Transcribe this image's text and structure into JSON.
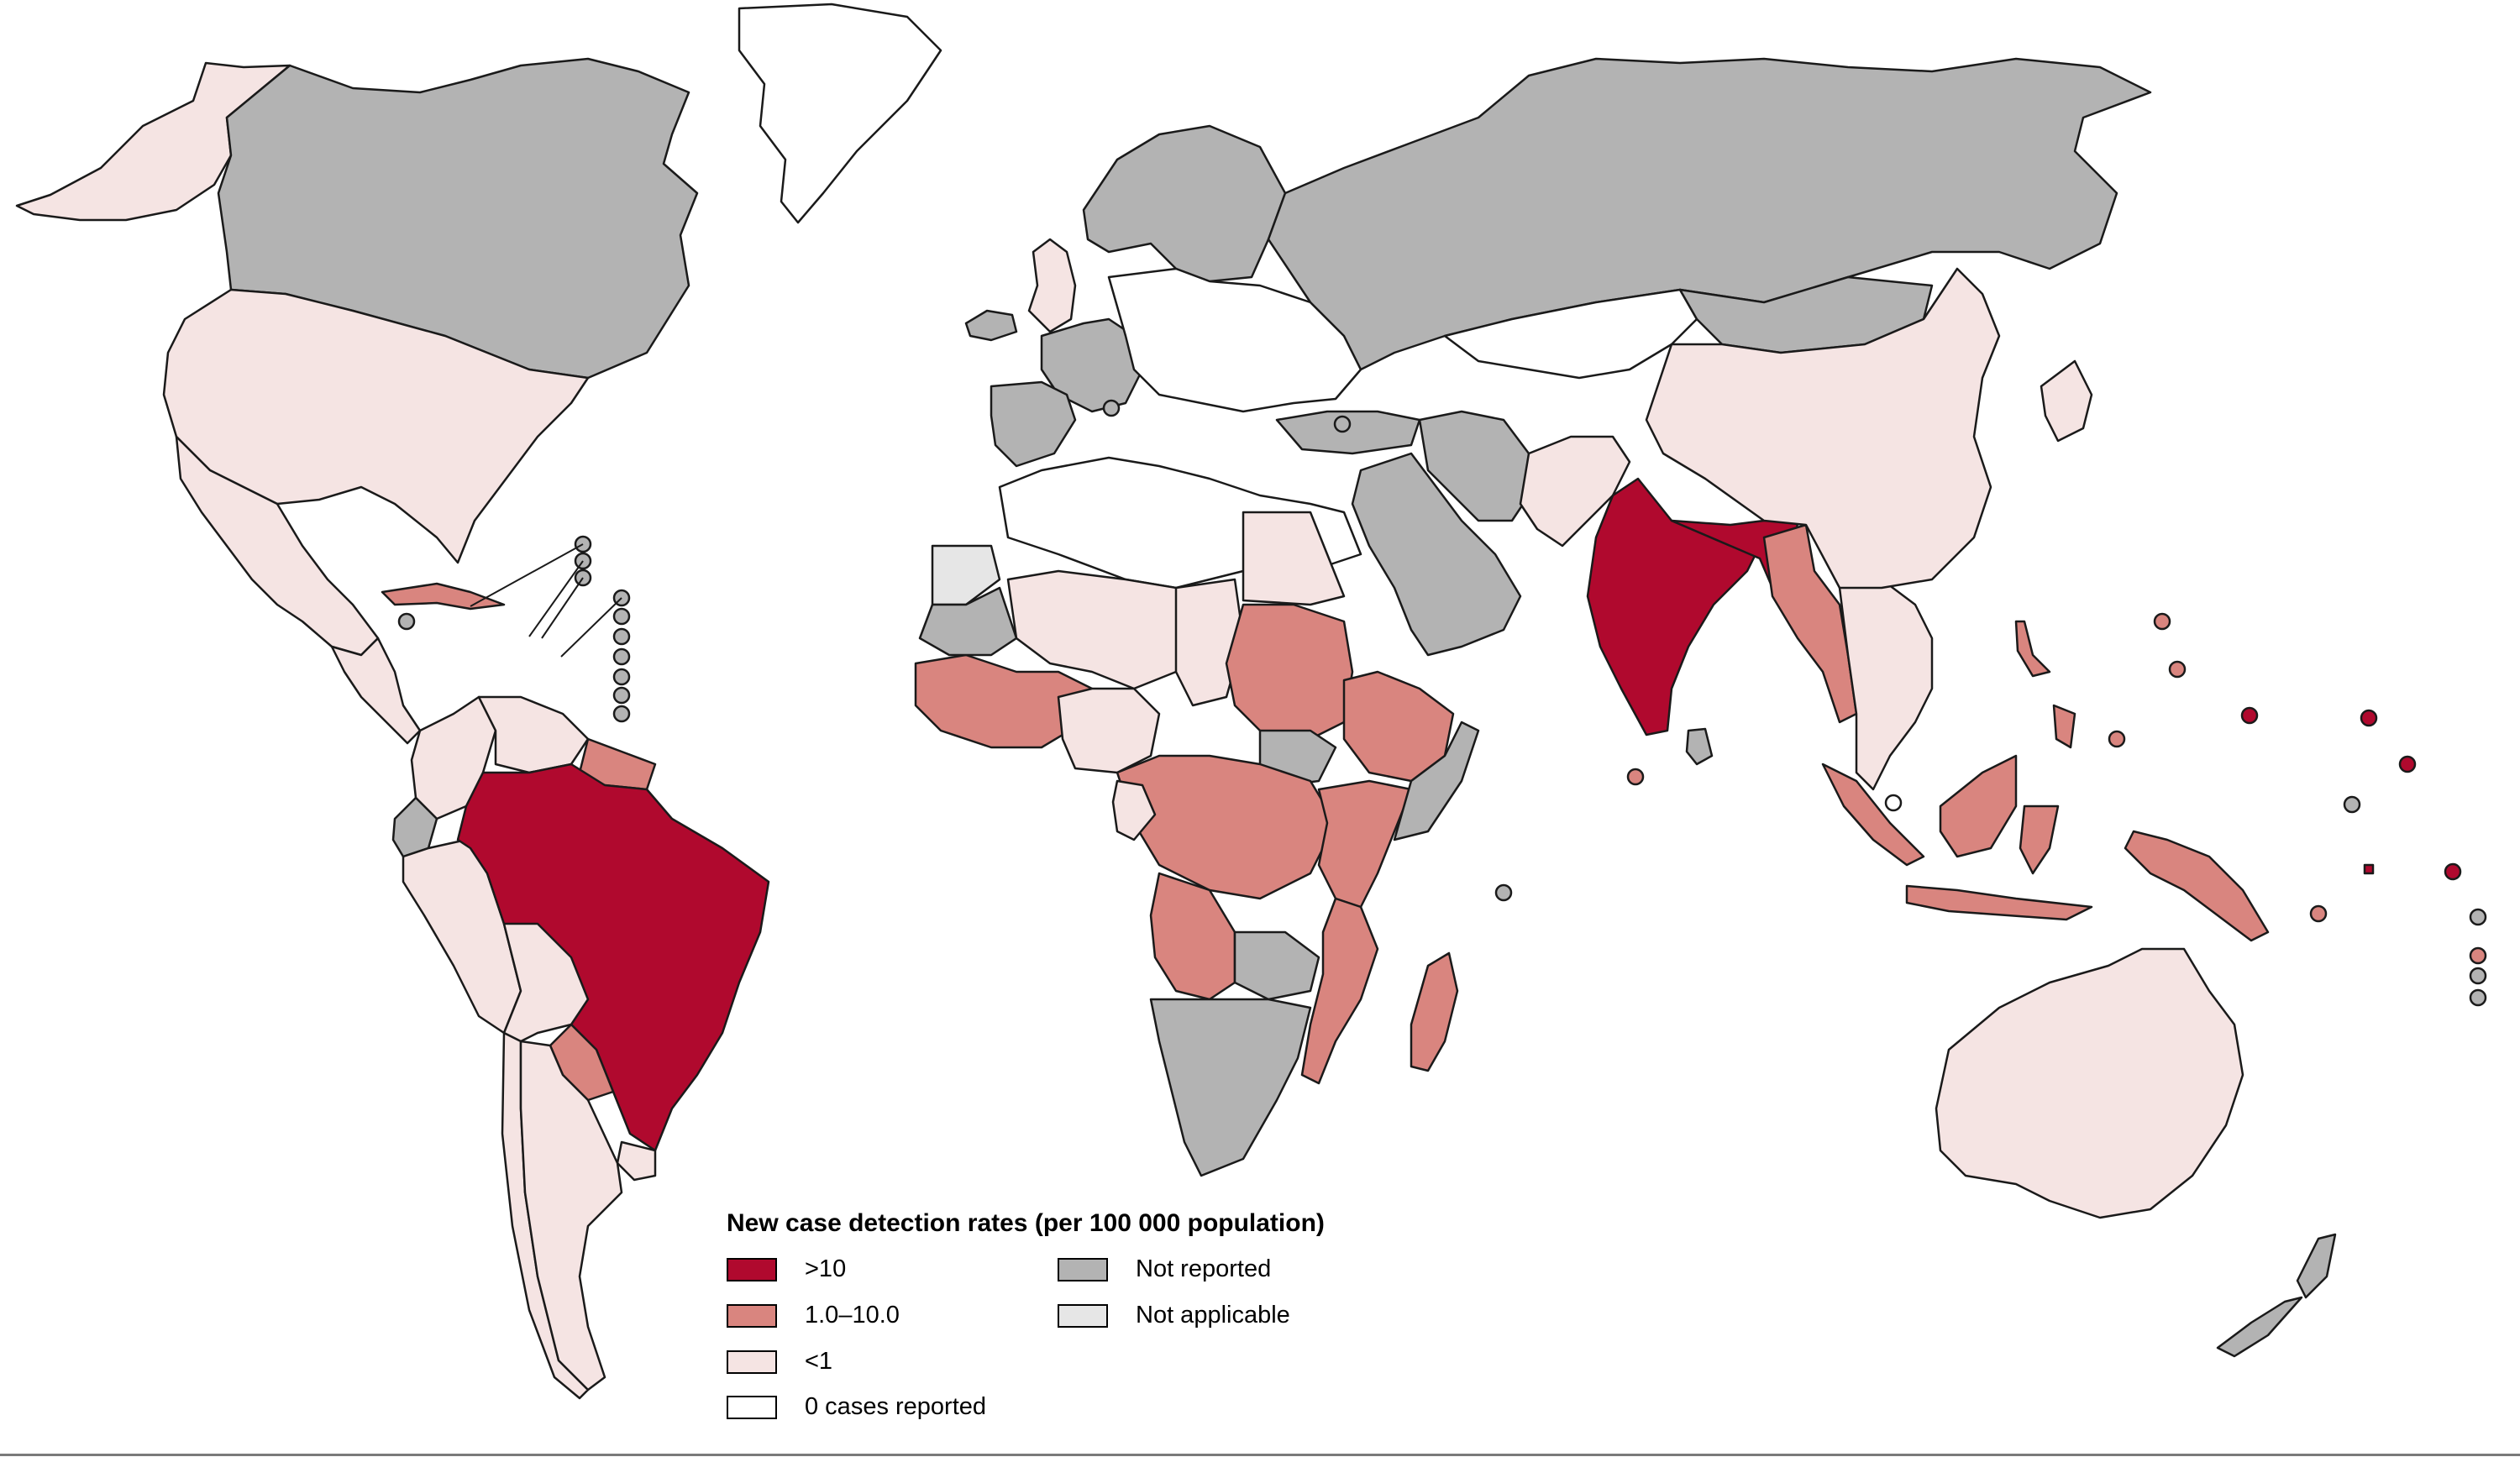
{
  "legend": {
    "title": "New case detection rates (per 100 000 population)",
    "items": [
      {
        "key": "gt10",
        "label": ">10",
        "color": "#b0092e"
      },
      {
        "key": "one_to_ten",
        "label": "1.0–10.0",
        "color": "#d9857f"
      },
      {
        "key": "lt1",
        "label": "<1",
        "color": "#f5e4e3"
      },
      {
        "key": "zero",
        "label": "0 cases reported",
        "color": "#ffffff"
      },
      {
        "key": "not_reported",
        "label": "Not reported",
        "color": "#b3b3b3"
      },
      {
        "key": "not_applicable",
        "label": "Not applicable",
        "color": "#e6e6e6"
      }
    ]
  },
  "regions": [
    {
      "name": "alaska",
      "category": "lt1"
    },
    {
      "name": "canada",
      "category": "not_reported"
    },
    {
      "name": "greenland",
      "category": "zero"
    },
    {
      "name": "usa",
      "category": "lt1"
    },
    {
      "name": "mexico",
      "category": "lt1"
    },
    {
      "name": "central-america",
      "category": "lt1"
    },
    {
      "name": "cuba",
      "category": "one_to_ten"
    },
    {
      "name": "colombia",
      "category": "lt1"
    },
    {
      "name": "venezuela",
      "category": "lt1"
    },
    {
      "name": "guianas",
      "category": "one_to_ten"
    },
    {
      "name": "ecuador",
      "category": "not_reported"
    },
    {
      "name": "peru",
      "category": "lt1"
    },
    {
      "name": "brazil",
      "category": "gt10"
    },
    {
      "name": "bolivia",
      "category": "lt1"
    },
    {
      "name": "paraguay",
      "category": "one_to_ten"
    },
    {
      "name": "uruguay",
      "category": "lt1"
    },
    {
      "name": "chile",
      "category": "lt1"
    },
    {
      "name": "argentina",
      "category": "lt1"
    },
    {
      "name": "iceland",
      "category": "not_reported"
    },
    {
      "name": "scandinavia",
      "category": "not_reported"
    },
    {
      "name": "uk",
      "category": "lt1"
    },
    {
      "name": "western-europe",
      "category": "not_reported"
    },
    {
      "name": "iberia",
      "category": "not_reported"
    },
    {
      "name": "central-europe",
      "category": "zero"
    },
    {
      "name": "russia",
      "category": "not_reported"
    },
    {
      "name": "kazakhstan",
      "category": "zero"
    },
    {
      "name": "mongolia",
      "category": "not_reported"
    },
    {
      "name": "turkey",
      "category": "not_reported"
    },
    {
      "name": "middle-east",
      "category": "not_reported"
    },
    {
      "name": "iran",
      "category": "not_reported"
    },
    {
      "name": "afghanistan-pakistan",
      "category": "lt1"
    },
    {
      "name": "india",
      "category": "gt10"
    },
    {
      "name": "nepal-bangladesh",
      "category": "gt10"
    },
    {
      "name": "myanmar",
      "category": "one_to_ten"
    },
    {
      "name": "southeast-asia",
      "category": "lt1"
    },
    {
      "name": "china",
      "category": "lt1"
    },
    {
      "name": "korea-japan",
      "category": "lt1"
    },
    {
      "name": "sri-lanka",
      "category": "not_reported"
    },
    {
      "name": "north-africa",
      "category": "zero"
    },
    {
      "name": "western-sahara",
      "category": "not_applicable"
    },
    {
      "name": "mali-niger",
      "category": "lt1"
    },
    {
      "name": "west-africa",
      "category": "one_to_ten"
    },
    {
      "name": "mauritania",
      "category": "not_reported"
    },
    {
      "name": "nigeria",
      "category": "lt1"
    },
    {
      "name": "chad",
      "category": "lt1"
    },
    {
      "name": "sudan",
      "category": "one_to_ten"
    },
    {
      "name": "egypt",
      "category": "lt1"
    },
    {
      "name": "ethiopia",
      "category": "one_to_ten"
    },
    {
      "name": "south-sudan",
      "category": "not_reported"
    },
    {
      "name": "central-africa",
      "category": "one_to_ten"
    },
    {
      "name": "gabon",
      "category": "lt1"
    },
    {
      "name": "east-africa",
      "category": "one_to_ten"
    },
    {
      "name": "somalia",
      "category": "not_reported"
    },
    {
      "name": "angola",
      "category": "one_to_ten"
    },
    {
      "name": "zambia",
      "category": "not_reported"
    },
    {
      "name": "mozambique",
      "category": "one_to_ten"
    },
    {
      "name": "southern-africa",
      "category": "not_reported"
    },
    {
      "name": "madagascar",
      "category": "one_to_ten"
    },
    {
      "name": "indonesia",
      "category": "one_to_ten"
    },
    {
      "name": "philippines",
      "category": "one_to_ten"
    },
    {
      "name": "papua-new-guinea",
      "category": "one_to_ten"
    },
    {
      "name": "australia",
      "category": "lt1"
    },
    {
      "name": "new-zealand",
      "category": "not_reported"
    },
    {
      "name": "pacific-islands",
      "category": "gt10"
    }
  ]
}
